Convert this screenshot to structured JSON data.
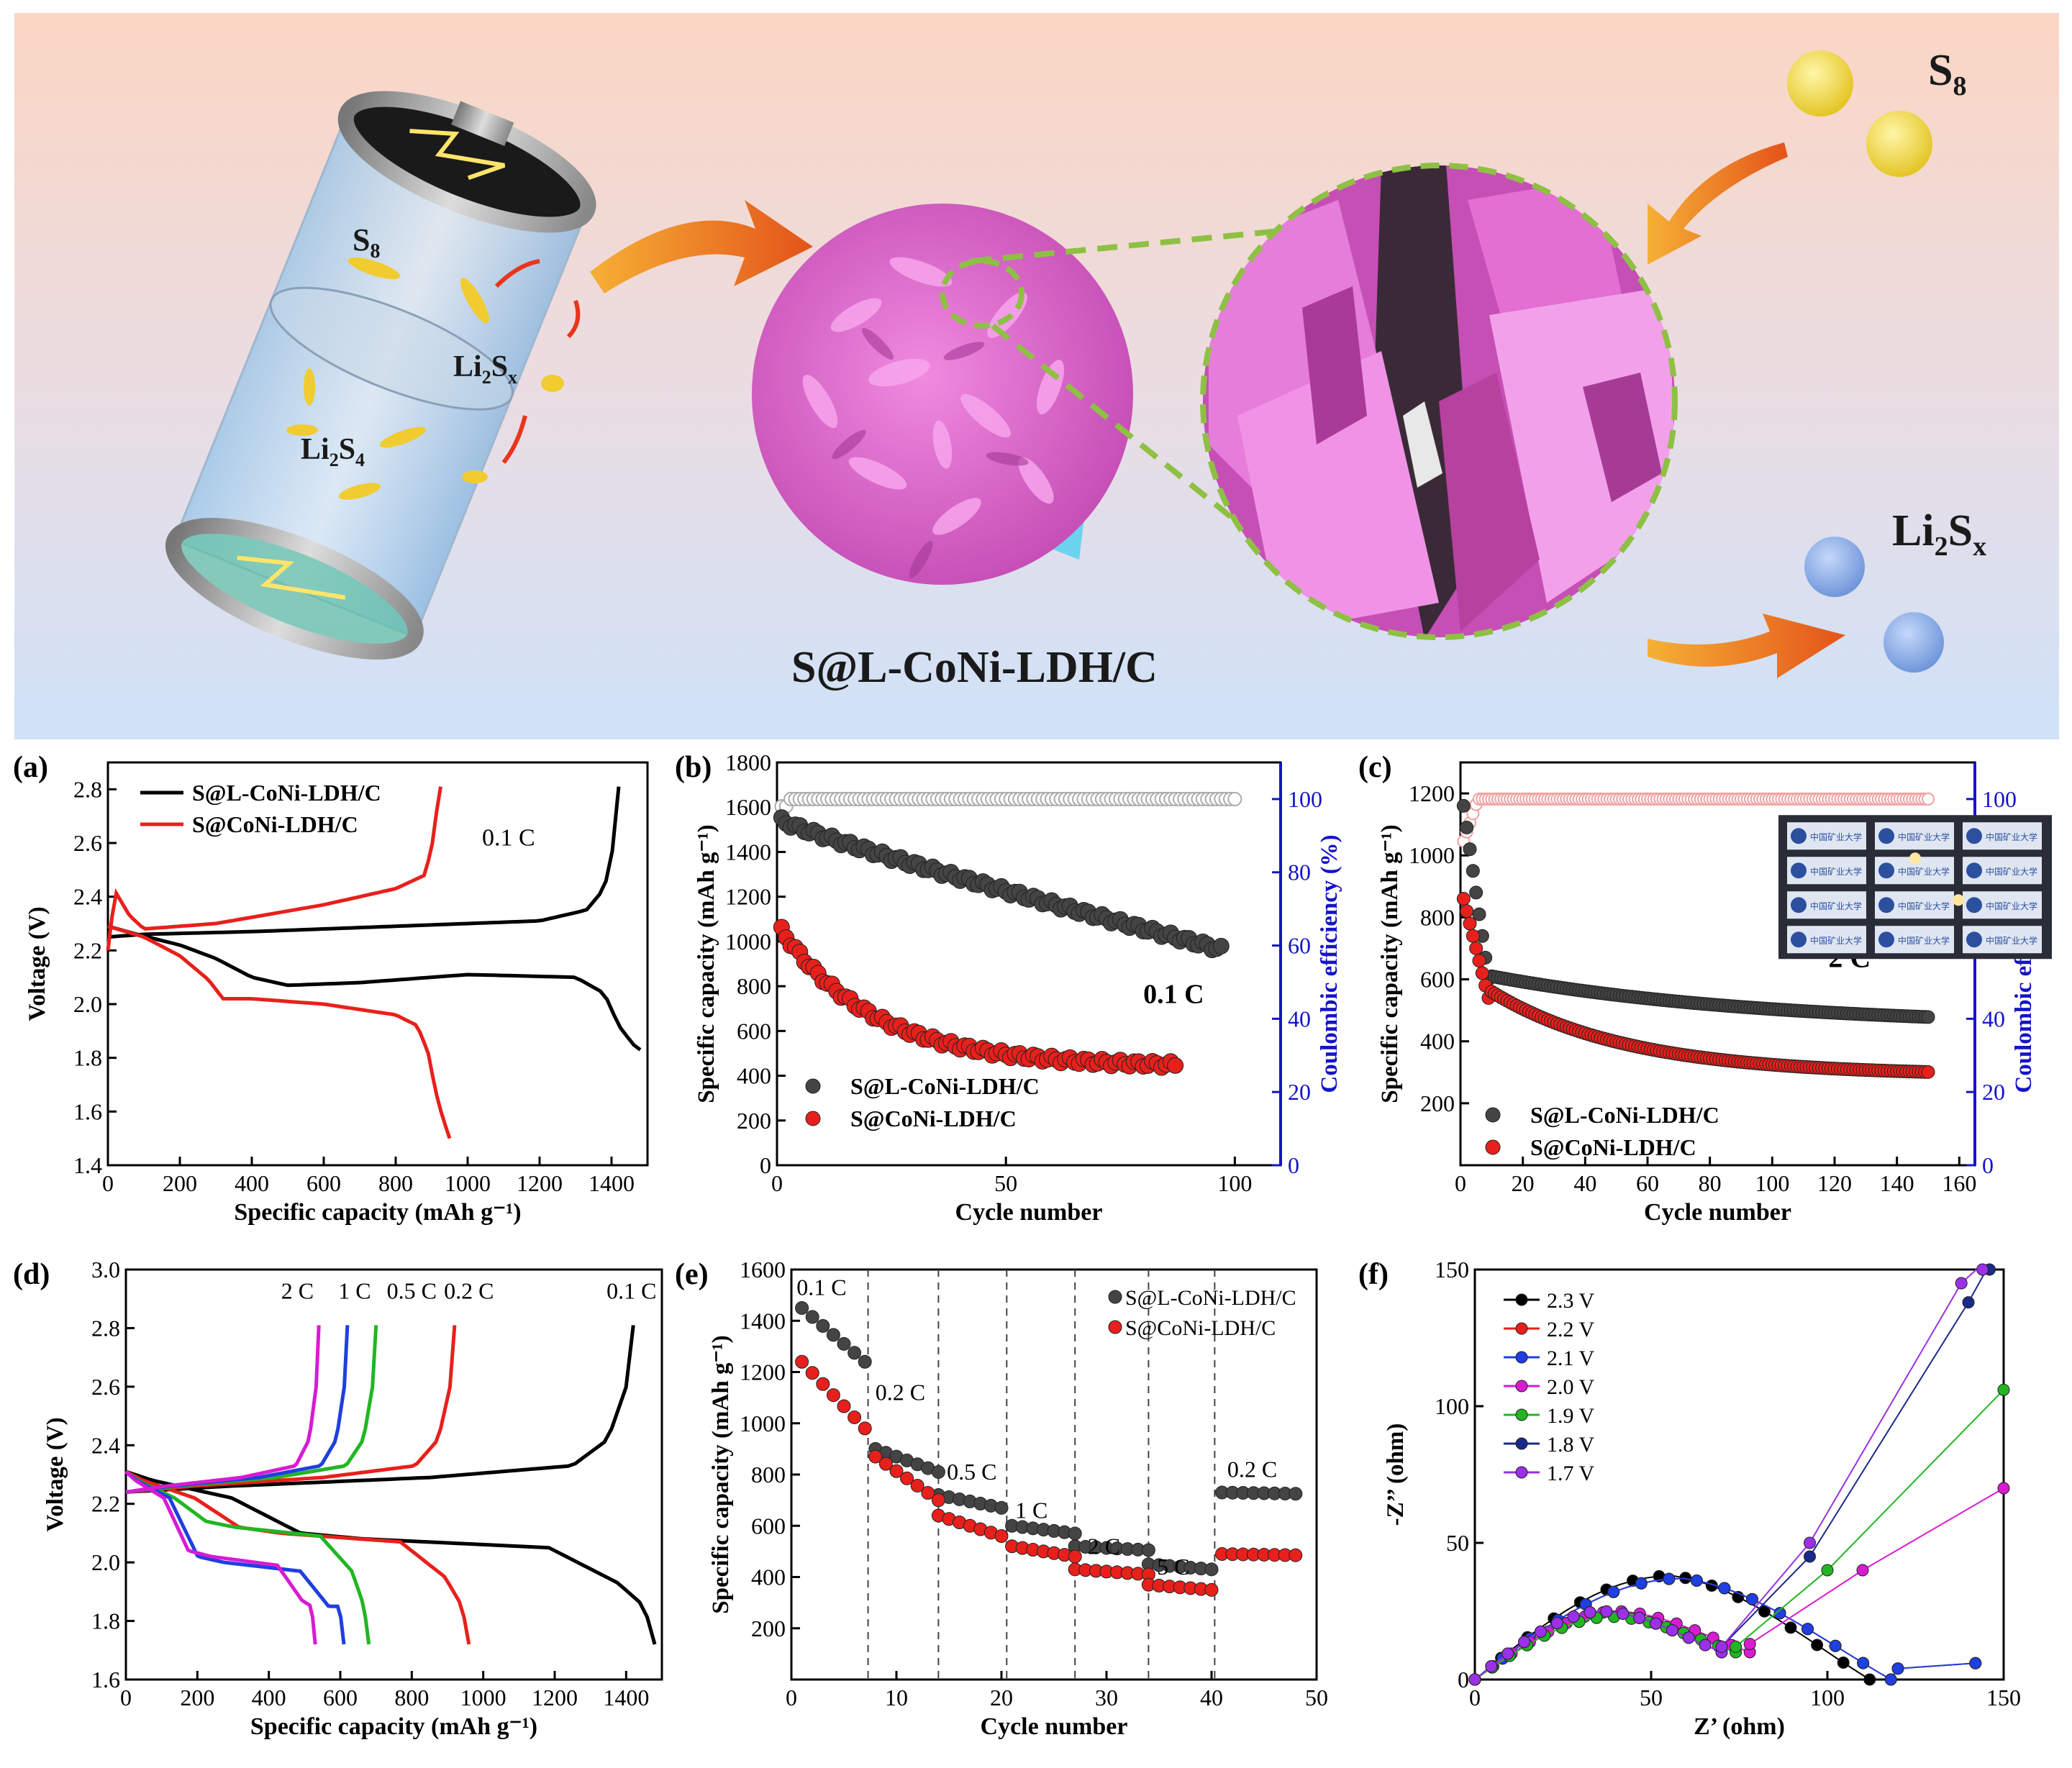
{
  "scheme": {
    "battery_s8": "S",
    "battery_s8_sub": "8",
    "battery_li2sx_a": "Li",
    "battery_li2sx_b": "2",
    "battery_li2sx_c": "S",
    "battery_li2sx_d": "x",
    "battery_li2s4_a": "Li",
    "battery_li2s4_b": "2",
    "battery_li2s4_c": "S",
    "battery_li2s4_d": "4",
    "material_label": "S@L-CoNi-LDH/C",
    "right_s8": "S",
    "right_s8_sub": "8",
    "right_li2sx_a": "Li",
    "right_li2sx_b": "2",
    "right_li2sx_c": "S",
    "right_li2sx_d": "x",
    "colors": {
      "bg_top": "#fbd8c6",
      "bg_bottom": "#cfe2f8",
      "petal": "#e36fd2",
      "sulfur": "#f4d83c",
      "li2sx": "#8fb2ea",
      "dash": "#8ec044",
      "arrow": "#f27a1c"
    }
  },
  "chart_data": [
    {
      "panel": "(a)",
      "type": "line",
      "xlabel": "Specific capacity (mAh g⁻¹)",
      "ylabel": "Voltage (V)",
      "xlim": [
        0,
        1500
      ],
      "ylim": [
        1.4,
        2.9
      ],
      "xticks": [
        "0",
        "200",
        "400",
        "600",
        "800",
        "1000",
        "1200",
        "1400"
      ],
      "yticks": [
        "1.4",
        "1.6",
        "1.8",
        "2.0",
        "2.2",
        "2.4",
        "2.6",
        "2.8"
      ],
      "annotation": "0.1 C",
      "series": [
        {
          "name": "S@L-CoNi-LDH/C",
          "color": "#000000",
          "discharge": [
            [
              0,
              2.29
            ],
            [
              80,
              2.26
            ],
            [
              200,
              2.22
            ],
            [
              300,
              2.17
            ],
            [
              400,
              2.1
            ],
            [
              500,
              2.07
            ],
            [
              700,
              2.08
            ],
            [
              1000,
              2.11
            ],
            [
              1300,
              2.1
            ],
            [
              1380,
              2.04
            ],
            [
              1420,
              1.92
            ],
            [
              1460,
              1.85
            ],
            [
              1480,
              1.83
            ]
          ],
          "charge": [
            [
              0,
              2.25
            ],
            [
              100,
              2.26
            ],
            [
              400,
              2.27
            ],
            [
              800,
              2.29
            ],
            [
              1200,
              2.31
            ],
            [
              1330,
              2.35
            ],
            [
              1380,
              2.43
            ],
            [
              1410,
              2.62
            ],
            [
              1420,
              2.81
            ]
          ]
        },
        {
          "name": "S@CoNi-LDH/C",
          "color": "#e8201c",
          "discharge": [
            [
              0,
              2.29
            ],
            [
              100,
              2.25
            ],
            [
              200,
              2.18
            ],
            [
              280,
              2.09
            ],
            [
              320,
              2.02
            ],
            [
              400,
              2.02
            ],
            [
              600,
              2.0
            ],
            [
              800,
              1.96
            ],
            [
              860,
              1.92
            ],
            [
              890,
              1.82
            ],
            [
              910,
              1.68
            ],
            [
              930,
              1.58
            ],
            [
              950,
              1.5
            ]
          ],
          "charge": [
            [
              0,
              2.2
            ],
            [
              20,
              2.42
            ],
            [
              60,
              2.33
            ],
            [
              100,
              2.28
            ],
            [
              300,
              2.3
            ],
            [
              600,
              2.37
            ],
            [
              800,
              2.43
            ],
            [
              880,
              2.48
            ],
            [
              900,
              2.58
            ],
            [
              915,
              2.73
            ],
            [
              925,
              2.81
            ]
          ]
        }
      ]
    },
    {
      "panel": "(b)",
      "type": "scatter",
      "xlabel": "Cycle number",
      "ylabel": "Specific capacity (mAh g⁻¹)",
      "y2label": "Coulombic efficiency (%)",
      "xlim": [
        0,
        110
      ],
      "ylim": [
        0,
        1800
      ],
      "y2lim": [
        0,
        110
      ],
      "xticks": [
        "0",
        "50",
        "100"
      ],
      "yticks": [
        "0",
        "200",
        "400",
        "600",
        "800",
        "1000",
        "1200",
        "1400",
        "1600",
        "1800"
      ],
      "y2ticks": [
        "0",
        "20",
        "40",
        "60",
        "80",
        "100"
      ],
      "annotation": "0.1 C",
      "series": [
        {
          "name": "S@L-CoNi-LDH/C",
          "color": "#444444",
          "cycles": 97,
          "start": 1540,
          "mid": 1200,
          "end": 965
        },
        {
          "name": "S@CoNi-LDH/C",
          "color": "#e8201c",
          "cycles": 87,
          "start": 1050,
          "mid": 520,
          "end": 440
        },
        {
          "name": "Coulombic efficiency",
          "color": "#aaaaaa",
          "cycles": 100,
          "value": 100
        }
      ]
    },
    {
      "panel": "(c)",
      "type": "scatter",
      "xlabel": "Cycle number",
      "ylabel": "Specific capacity (mAh g⁻¹)",
      "y2label": "Coulombic efficiency (%)",
      "xlim": [
        0,
        165
      ],
      "ylim": [
        0,
        1300
      ],
      "y2lim": [
        0,
        110
      ],
      "xticks": [
        "0",
        "20",
        "40",
        "60",
        "80",
        "100",
        "120",
        "140",
        "160"
      ],
      "yticks": [
        "200",
        "400",
        "600",
        "800",
        "1000",
        "1200"
      ],
      "y2ticks": [
        "0",
        "20",
        "40",
        "60",
        "80",
        "100"
      ],
      "annotation": "2 C",
      "inset_text": "中国矿业大学",
      "series": [
        {
          "name": "S@L-CoNi-LDH/C",
          "color": "#444444",
          "cycles": 150,
          "start": 610,
          "end": 445
        },
        {
          "name": "S@CoNi-LDH/C",
          "color": "#e8201c",
          "cycles": 150,
          "start": 560,
          "end": 290
        },
        {
          "name": "Coulombic efficiency",
          "color": "#f0a0a0",
          "cycles": 150,
          "value": 100
        }
      ]
    },
    {
      "panel": "(d)",
      "type": "line",
      "xlabel": "Specific capacity (mAh g⁻¹)",
      "ylabel": "Voltage (V)",
      "xlim": [
        0,
        1500
      ],
      "ylim": [
        1.6,
        3.0
      ],
      "xticks": [
        "0",
        "200",
        "400",
        "600",
        "800",
        "1000",
        "1200",
        "1400"
      ],
      "yticks": [
        "1.6",
        "1.8",
        "2.0",
        "2.2",
        "2.4",
        "2.6",
        "2.8",
        "3.0"
      ],
      "rate_labels": [
        "2 C",
        "1 C",
        "0.5 C",
        "0.2 C",
        "0.1 C"
      ],
      "series": [
        {
          "name": "0.1 C",
          "color": "#000000",
          "dis": 1480,
          "chg": 1420,
          "plateau": 2.08
        },
        {
          "name": "0.2 C",
          "color": "#e8201c",
          "dis": 960,
          "chg": 920,
          "plateau": 2.1
        },
        {
          "name": "0.5 C",
          "color": "#22b622",
          "dis": 680,
          "chg": 700,
          "plateau": 2.12
        },
        {
          "name": "1 C",
          "color": "#1f3fe0",
          "dis": 610,
          "chg": 620,
          "plateau": 2.0
        },
        {
          "name": "2 C",
          "color": "#d81bd3",
          "dis": 530,
          "chg": 540,
          "plateau": 2.02
        }
      ]
    },
    {
      "panel": "(e)",
      "type": "scatter",
      "xlabel": "Cycle number",
      "ylabel": "Specific capacity (mAh g⁻¹)",
      "xlim": [
        0,
        50
      ],
      "ylim": [
        0,
        1600
      ],
      "xticks": [
        "0",
        "10",
        "20",
        "30",
        "40",
        "50"
      ],
      "yticks": [
        "200",
        "400",
        "600",
        "800",
        "1000",
        "1200",
        "1400",
        "1600"
      ],
      "rate_labels": [
        "0.1 C",
        "0.2 C",
        "0.5 C",
        "1 C",
        "2 C",
        "5 C",
        "0.2 C"
      ],
      "series": [
        {
          "name": "S@L-CoNi-LDH/C",
          "color": "#444444",
          "steps": [
            [
              1450,
              1240
            ],
            [
              900,
              810
            ],
            [
              720,
              670
            ],
            [
              600,
              570
            ],
            [
              520,
              505
            ],
            [
              450,
              430
            ],
            [
              730,
              725
            ]
          ]
        },
        {
          "name": "S@CoNi-LDH/C",
          "color": "#e8201c",
          "steps": [
            [
              1240,
              980
            ],
            [
              870,
              700
            ],
            [
              640,
              560
            ],
            [
              520,
              480
            ],
            [
              430,
              410
            ],
            [
              370,
              350
            ],
            [
              490,
              485
            ]
          ]
        }
      ]
    },
    {
      "panel": "(f)",
      "type": "scatter",
      "xlabel": "Z’ (ohm)",
      "ylabel": "-Z’’ (ohm)",
      "xlim": [
        0,
        150
      ],
      "ylim": [
        0,
        150
      ],
      "xticks": [
        "0",
        "50",
        "100",
        "150"
      ],
      "yticks": [
        "0",
        "50",
        "100",
        "150"
      ],
      "series": [
        {
          "name": "2.3 V",
          "color": "#000000"
        },
        {
          "name": "2.2 V",
          "color": "#e8201c"
        },
        {
          "name": "2.1 V",
          "color": "#1f3fe0"
        },
        {
          "name": "2.0 V",
          "color": "#d81bd3"
        },
        {
          "name": "1.9 V",
          "color": "#22b622"
        },
        {
          "name": "1.8 V",
          "color": "#1a2a8a"
        },
        {
          "name": "1.7 V",
          "color": "#9b30e8"
        }
      ]
    }
  ]
}
